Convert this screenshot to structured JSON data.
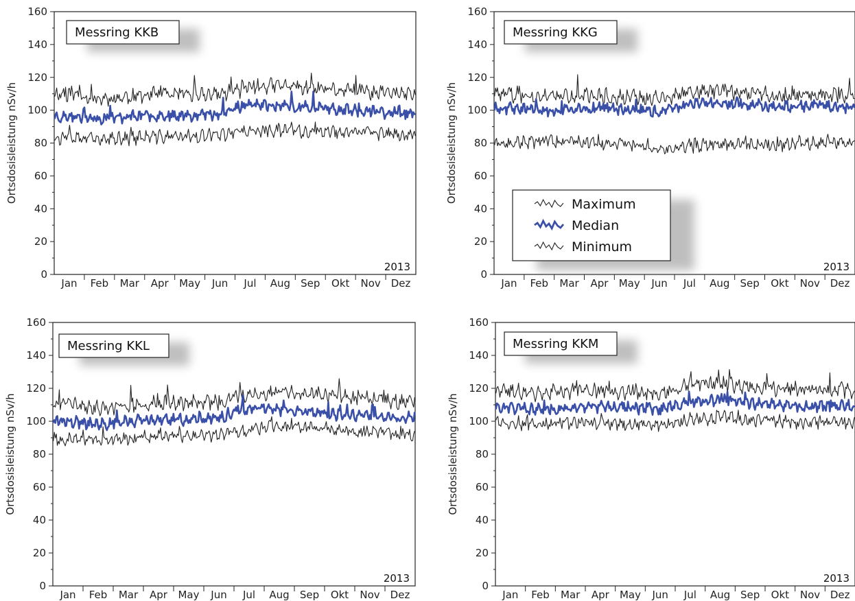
{
  "figure": {
    "ylabel": "Ortsdosisleistung nSv/h",
    "year": "2013",
    "months": [
      "Jan",
      "Feb",
      "Mar",
      "Apr",
      "May",
      "Jun",
      "Jul",
      "Aug",
      "Sep",
      "Okt",
      "Nov",
      "Dez"
    ],
    "y_ticks": [
      "0",
      "20",
      "40",
      "60",
      "80",
      "100",
      "120",
      "140",
      "160"
    ],
    "legend": {
      "max_label": "Maximum",
      "median_label": "Median",
      "min_label": "Minimum",
      "max_color": "#222222",
      "median_color": "#3a4fa8",
      "min_color": "#222222"
    }
  },
  "chart_data": [
    {
      "type": "line",
      "title": "Messring KKB",
      "ylabel": "Ortsdosisleistung nSv/h",
      "ylim": [
        0,
        160
      ],
      "x_label_note": "2013",
      "categories": [
        "Jan",
        "Feb",
        "Mar",
        "Apr",
        "May",
        "Jun",
        "Jul",
        "Aug",
        "Sep",
        "Okt",
        "Nov",
        "Dez"
      ],
      "series": [
        {
          "name": "Maximum",
          "values": [
            110,
            107,
            108,
            110,
            109,
            110,
            114,
            115,
            113,
            112,
            111,
            110
          ]
        },
        {
          "name": "Median",
          "values": [
            96,
            95,
            96,
            97,
            97,
            98,
            104,
            102,
            102,
            100,
            99,
            98
          ]
        },
        {
          "name": "Minimum",
          "values": [
            83,
            82,
            83,
            84,
            84,
            85,
            87,
            88,
            87,
            87,
            86,
            85
          ]
        }
      ]
    },
    {
      "type": "line",
      "title": "Messring KKG",
      "ylabel": "Ortsdosisleistung nSv/h",
      "ylim": [
        0,
        160
      ],
      "x_label_note": "2013",
      "categories": [
        "Jan",
        "Feb",
        "Mar",
        "Apr",
        "May",
        "Jun",
        "Jul",
        "Aug",
        "Sep",
        "Okt",
        "Nov",
        "Dez"
      ],
      "series": [
        {
          "name": "Maximum",
          "values": [
            110,
            108,
            108,
            109,
            108,
            107,
            111,
            112,
            110,
            109,
            110,
            109
          ]
        },
        {
          "name": "Median",
          "values": [
            101,
            100,
            100,
            101,
            100,
            99,
            104,
            104,
            103,
            102,
            103,
            102
          ]
        },
        {
          "name": "Minimum",
          "values": [
            80,
            81,
            81,
            80,
            79,
            75,
            78,
            79,
            79,
            79,
            80,
            80
          ]
        }
      ]
    },
    {
      "type": "line",
      "title": "Messring KKL",
      "ylabel": "Ortsdosisleistung nSv/h",
      "ylim": [
        0,
        160
      ],
      "x_label_note": "2013",
      "categories": [
        "Jan",
        "Feb",
        "Mar",
        "Apr",
        "May",
        "Jun",
        "Jul",
        "Aug",
        "Sep",
        "Okt",
        "Nov",
        "Dez"
      ],
      "series": [
        {
          "name": "Maximum",
          "values": [
            110,
            108,
            110,
            111,
            111,
            112,
            117,
            118,
            117,
            115,
            113,
            112
          ]
        },
        {
          "name": "Median",
          "values": [
            100,
            98,
            100,
            101,
            101,
            102,
            108,
            107,
            106,
            104,
            103,
            102
          ]
        },
        {
          "name": "Minimum",
          "values": [
            89,
            88,
            90,
            91,
            91,
            92,
            95,
            97,
            96,
            94,
            93,
            92
          ]
        }
      ]
    },
    {
      "type": "line",
      "title": "Messring KKM",
      "ylabel": "Ortsdosisleistung nSv/h",
      "ylim": [
        0,
        160
      ],
      "x_label_note": "2013",
      "categories": [
        "Jan",
        "Feb",
        "Mar",
        "Apr",
        "May",
        "Jun",
        "Jul",
        "Aug",
        "Sep",
        "Okt",
        "Nov",
        "Dez"
      ],
      "series": [
        {
          "name": "Maximum",
          "values": [
            118,
            117,
            118,
            119,
            118,
            117,
            122,
            123,
            121,
            120,
            119,
            119
          ]
        },
        {
          "name": "Median",
          "values": [
            108,
            107,
            108,
            109,
            108,
            107,
            112,
            113,
            111,
            110,
            109,
            109
          ]
        },
        {
          "name": "Minimum",
          "values": [
            99,
            98,
            99,
            99,
            98,
            97,
            101,
            102,
            101,
            100,
            99,
            99
          ]
        }
      ]
    }
  ]
}
